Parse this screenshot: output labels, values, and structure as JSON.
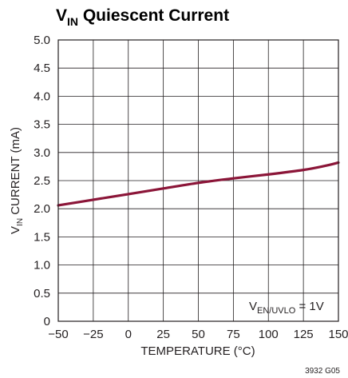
{
  "chart_data": {
    "type": "line",
    "title": {
      "main": "V",
      "sub": "IN",
      "rest": " Quiescent Current"
    },
    "xlabel": "TEMPERATURE (°C)",
    "ylabel": {
      "main": "V",
      "sub": "IN",
      "rest": " CURRENT (mA)"
    },
    "xlim": [
      -50,
      150
    ],
    "ylim": [
      0,
      5
    ],
    "x_ticks": [
      "−50",
      "−25",
      "0",
      "25",
      "50",
      "75",
      "100",
      "125",
      "150"
    ],
    "x_tick_values": [
      -50,
      -25,
      0,
      25,
      50,
      75,
      100,
      125,
      150
    ],
    "y_ticks": [
      "0",
      "0.5",
      "1.0",
      "1.5",
      "2.0",
      "2.5",
      "3.0",
      "3.5",
      "4.0",
      "4.5",
      "5.0"
    ],
    "y_tick_values": [
      0,
      0.5,
      1.0,
      1.5,
      2.0,
      2.5,
      3.0,
      3.5,
      4.0,
      4.5,
      5.0
    ],
    "grid": true,
    "series": [
      {
        "x": [
          -50,
          -25,
          0,
          25,
          50,
          75,
          100,
          125,
          140,
          150
        ],
        "y": [
          2.06,
          2.16,
          2.26,
          2.36,
          2.46,
          2.54,
          2.61,
          2.69,
          2.76,
          2.82
        ]
      }
    ],
    "annotation": {
      "main": "V",
      "sub": "EN/UVLO",
      "rest": " = 1V"
    },
    "figure_code": "3932 G05",
    "colors": {
      "line": "#8b1538",
      "grid": "#231f20",
      "text": "#231f20"
    }
  }
}
